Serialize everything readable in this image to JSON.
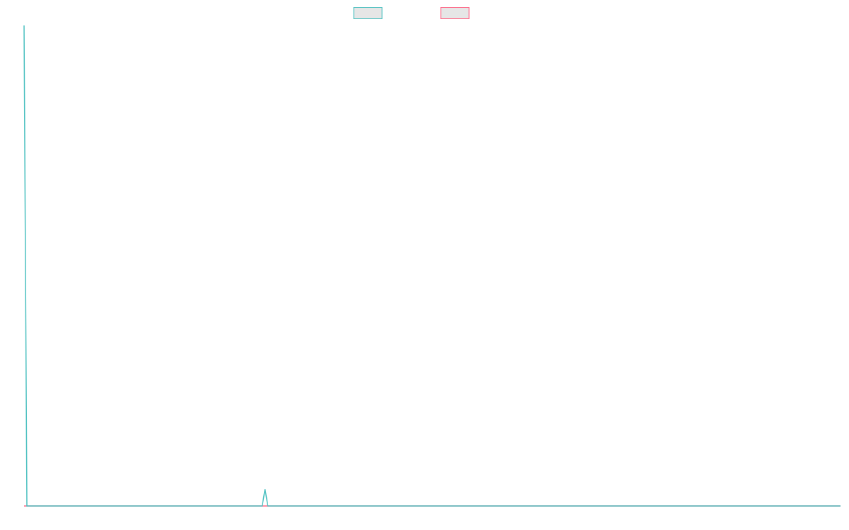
{
  "chart_data": {
    "type": "line",
    "x": [
      0,
      1,
      84,
      85,
      86,
      288
    ],
    "series": [
      {
        "color": "#4bc0c0",
        "values": [
          100,
          0,
          0,
          3.5,
          0,
          0
        ]
      },
      {
        "color": "#ff6384",
        "values": [
          0,
          0,
          0,
          0,
          0,
          0
        ]
      }
    ],
    "xlim": [
      0,
      288
    ],
    "ylim": [
      0,
      100
    ],
    "legend": "top"
  }
}
